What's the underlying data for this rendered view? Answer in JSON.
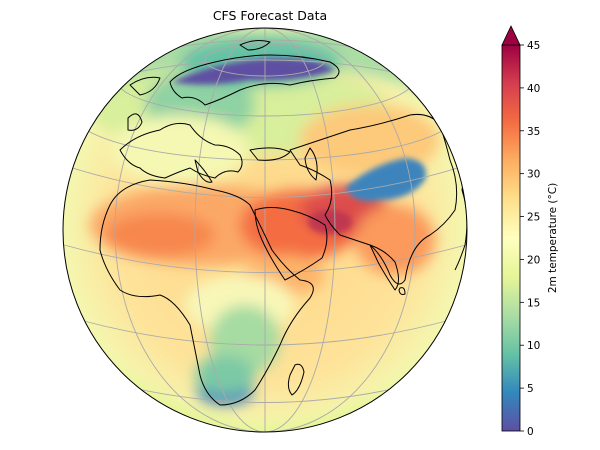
{
  "title": "CFS Forecast Data",
  "colorbar": {
    "label": "2m temperature (°C)",
    "min": 0,
    "max": 45,
    "extend": "max",
    "ticks": [
      "0",
      "5",
      "10",
      "15",
      "20",
      "25",
      "30",
      "35",
      "40",
      "45"
    ],
    "colormap": "Spectral_r",
    "stops": [
      "#5e4fa2",
      "#3288bd",
      "#66c2a5",
      "#abdda4",
      "#e6f598",
      "#ffffbf",
      "#fee08b",
      "#fdae61",
      "#f46d43",
      "#d53e4f",
      "#9e0142"
    ]
  },
  "map": {
    "projection": "orthographic",
    "coastline_color": "#000000",
    "gridline_color": "#aaaaaa",
    "ocean_color": "#fed88a"
  }
}
